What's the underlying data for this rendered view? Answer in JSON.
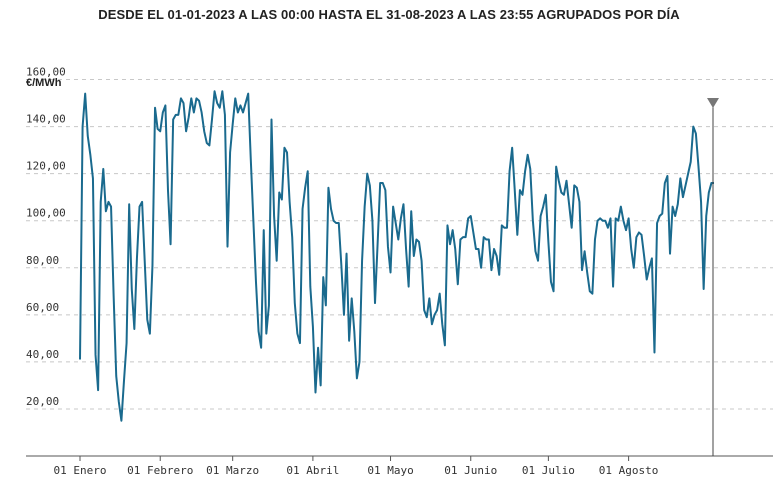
{
  "chart_data": {
    "type": "line",
    "title": "DESDE EL 01-01-2023 A LAS 00:00 HASTA EL 31-08-2023 A LAS 23:55 AGRUPADOS POR DÍA",
    "ylabel": "€/MWh",
    "xlabel": "",
    "ylim": [
      0,
      170
    ],
    "y_ticks": [
      "20,00",
      "40,00",
      "60,00",
      "80,00",
      "100,00",
      "120,00",
      "140,00",
      "160,00"
    ],
    "y_tick_values": [
      20,
      40,
      60,
      80,
      100,
      120,
      140,
      160
    ],
    "x_ticks": [
      "01 Enero",
      "01 Febrero",
      "01 Marzo",
      "01 Abril",
      "01 Mayo",
      "01 Junio",
      "01 Julio",
      "01 Agosto"
    ],
    "x_tick_days": [
      0,
      31,
      59,
      90,
      120,
      151,
      181,
      212
    ],
    "x_range_days": [
      -9,
      255
    ],
    "grid": true,
    "line_color": "#1a6a8e",
    "series": [
      {
        "values": [
          41,
          140,
          154,
          136,
          128,
          118,
          43,
          28,
          108,
          122,
          104,
          108,
          106,
          68,
          34,
          23,
          15,
          32,
          48,
          107,
          71,
          54,
          84,
          106,
          108,
          83,
          58,
          52,
          81,
          148,
          139,
          138,
          146,
          149,
          113,
          90,
          143,
          145,
          145,
          152,
          150,
          138,
          144,
          152,
          146,
          152,
          151,
          146,
          138,
          133,
          132,
          143,
          155,
          150,
          148,
          155,
          145,
          89,
          129,
          141,
          152,
          146,
          149,
          146,
          150,
          154,
          126,
          100,
          74,
          53,
          46,
          96,
          52,
          64,
          143,
          102,
          83,
          112,
          109,
          131,
          129,
          108,
          93,
          65,
          52,
          48,
          105,
          114,
          121,
          72,
          55,
          27,
          46,
          30,
          76,
          64,
          114,
          105,
          100,
          99,
          99,
          81,
          60,
          86,
          49,
          67,
          53,
          33,
          40,
          83,
          106,
          120,
          115,
          100,
          65,
          90,
          116,
          116,
          113,
          89,
          78,
          106,
          99,
          92,
          101,
          107,
          88,
          72,
          104,
          85,
          92,
          91,
          83,
          62,
          59,
          67,
          56,
          60,
          62,
          69,
          56,
          47,
          98,
          90,
          96,
          88,
          73,
          92,
          93,
          93,
          101,
          102,
          95,
          88,
          88,
          80,
          93,
          92,
          92,
          79,
          88,
          85,
          77,
          98,
          97,
          97,
          121,
          131,
          113,
          94,
          113,
          111,
          121,
          128,
          122,
          100,
          87,
          83,
          102,
          106,
          111,
          91,
          74,
          70,
          123,
          117,
          112,
          111,
          117,
          107,
          97,
          115,
          114,
          108,
          79,
          87,
          78,
          70,
          69,
          92,
          100,
          101,
          100,
          100,
          97,
          101,
          72,
          101,
          100,
          106,
          100,
          96,
          101,
          88,
          80,
          93,
          95,
          94,
          85,
          75,
          80,
          84,
          44,
          99,
          102,
          103,
          116,
          119,
          86,
          106,
          102,
          107,
          118,
          110,
          115,
          120,
          125,
          140,
          137,
          123,
          108,
          71,
          102,
          112,
          116,
          116
        ]
      }
    ]
  }
}
